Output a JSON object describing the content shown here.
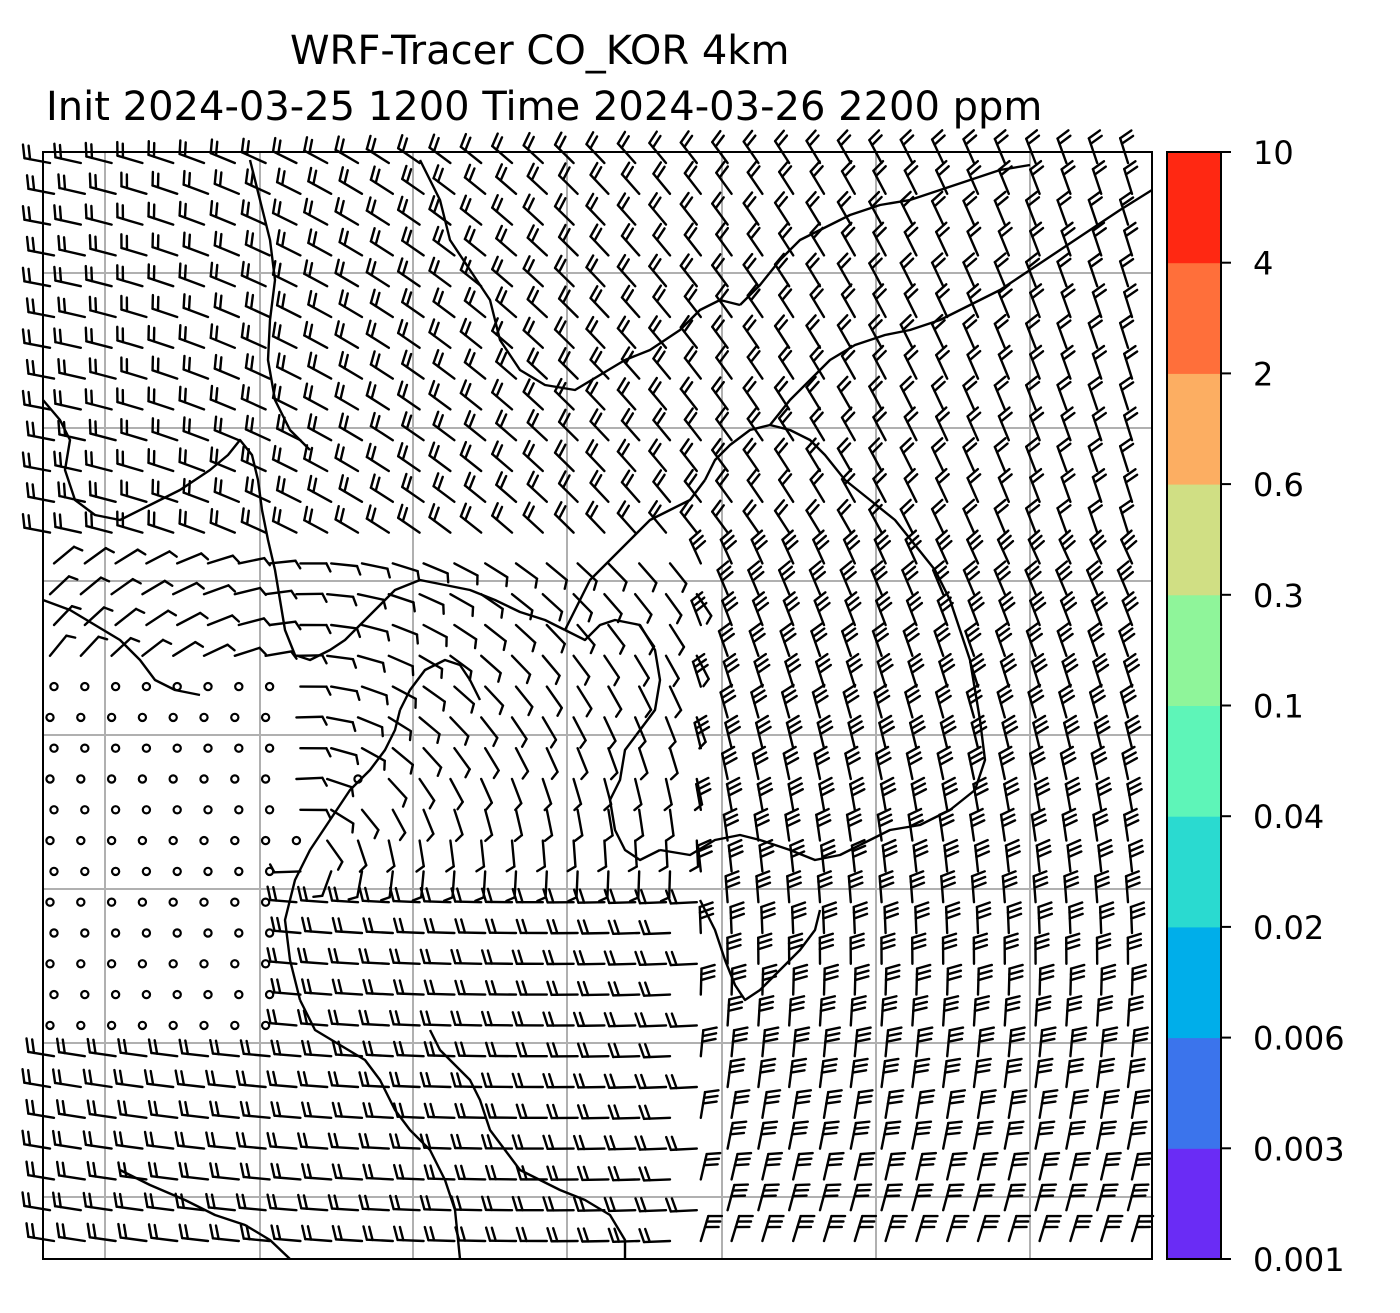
{
  "title": {
    "line1": "WRF-Tracer CO_KOR 4km",
    "line2": "Init 2024-03-25 1200 Time 2024-03-26 2200 ppm"
  },
  "colorbar": {
    "ticks": [
      "0.001",
      "0.003",
      "0.006",
      "0.02",
      "0.04",
      "0.1",
      "0.3",
      "0.6",
      "2",
      "4",
      "10"
    ],
    "colors": [
      "#6a2cf5",
      "#3b74ec",
      "#00aeea",
      "#2adad0",
      "#5ef5b8",
      "#8ff59a",
      "#d0df84",
      "#fcae62",
      "#ff6f3a",
      "#ff2812"
    ]
  },
  "map": {
    "layers": [
      "gridlines",
      "coastlines",
      "wind-barbs"
    ],
    "gridline_color": "#b0b0b0"
  }
}
